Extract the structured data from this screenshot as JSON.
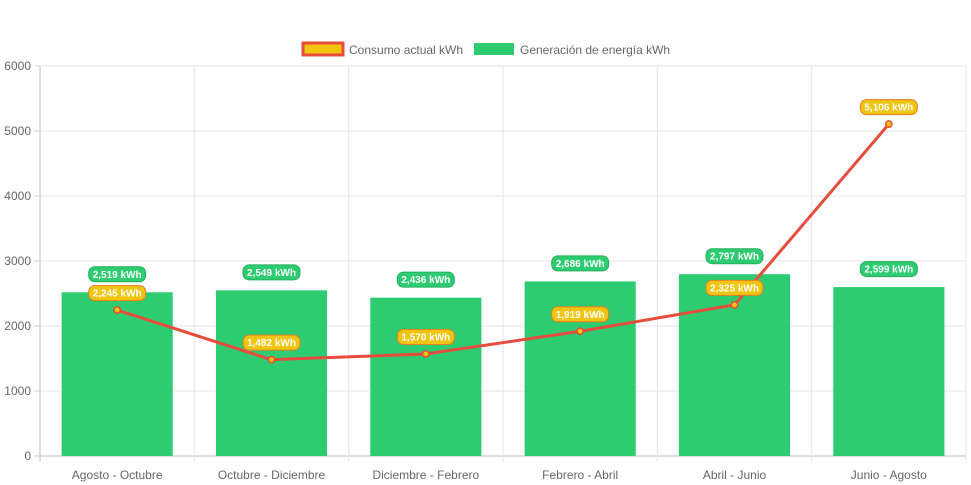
{
  "chart_data": {
    "type": "bar",
    "categories": [
      "Agosto - Octubre",
      "Octubre - Diciembre",
      "Diciembre - Febrero",
      "Febrero - Abril",
      "Abril - Junio",
      "Junio - Agosto"
    ],
    "series": [
      {
        "name": "Consumo actual kWh",
        "type": "line",
        "values": [
          2245,
          1482,
          1570,
          1919,
          2325,
          5106
        ],
        "labels": [
          "2,245 kWh",
          "1,482 kWh",
          "1,570 kWh",
          "1,919 kWh",
          "2,325 kWh",
          "5,106 kWh"
        ],
        "color": "#e74c3c",
        "fill_color": "#f1c40f"
      },
      {
        "name": "Generación de energía kWh",
        "type": "bar",
        "values": [
          2519,
          2549,
          2436,
          2686,
          2797,
          2599
        ],
        "labels": [
          "2,519 kWh",
          "2,549 kWh",
          "2,436 kWh",
          "2,686 kWh",
          "2,797 kWh",
          "2,599 kWh"
        ],
        "color": "#2ecc71"
      }
    ],
    "ylim": [
      0,
      6000
    ],
    "yticks": [
      "0",
      "1000",
      "2000",
      "3000",
      "4000",
      "5000",
      "6000"
    ],
    "xlabel": "",
    "ylabel": "",
    "grid": true,
    "legend_position": "top-center"
  }
}
